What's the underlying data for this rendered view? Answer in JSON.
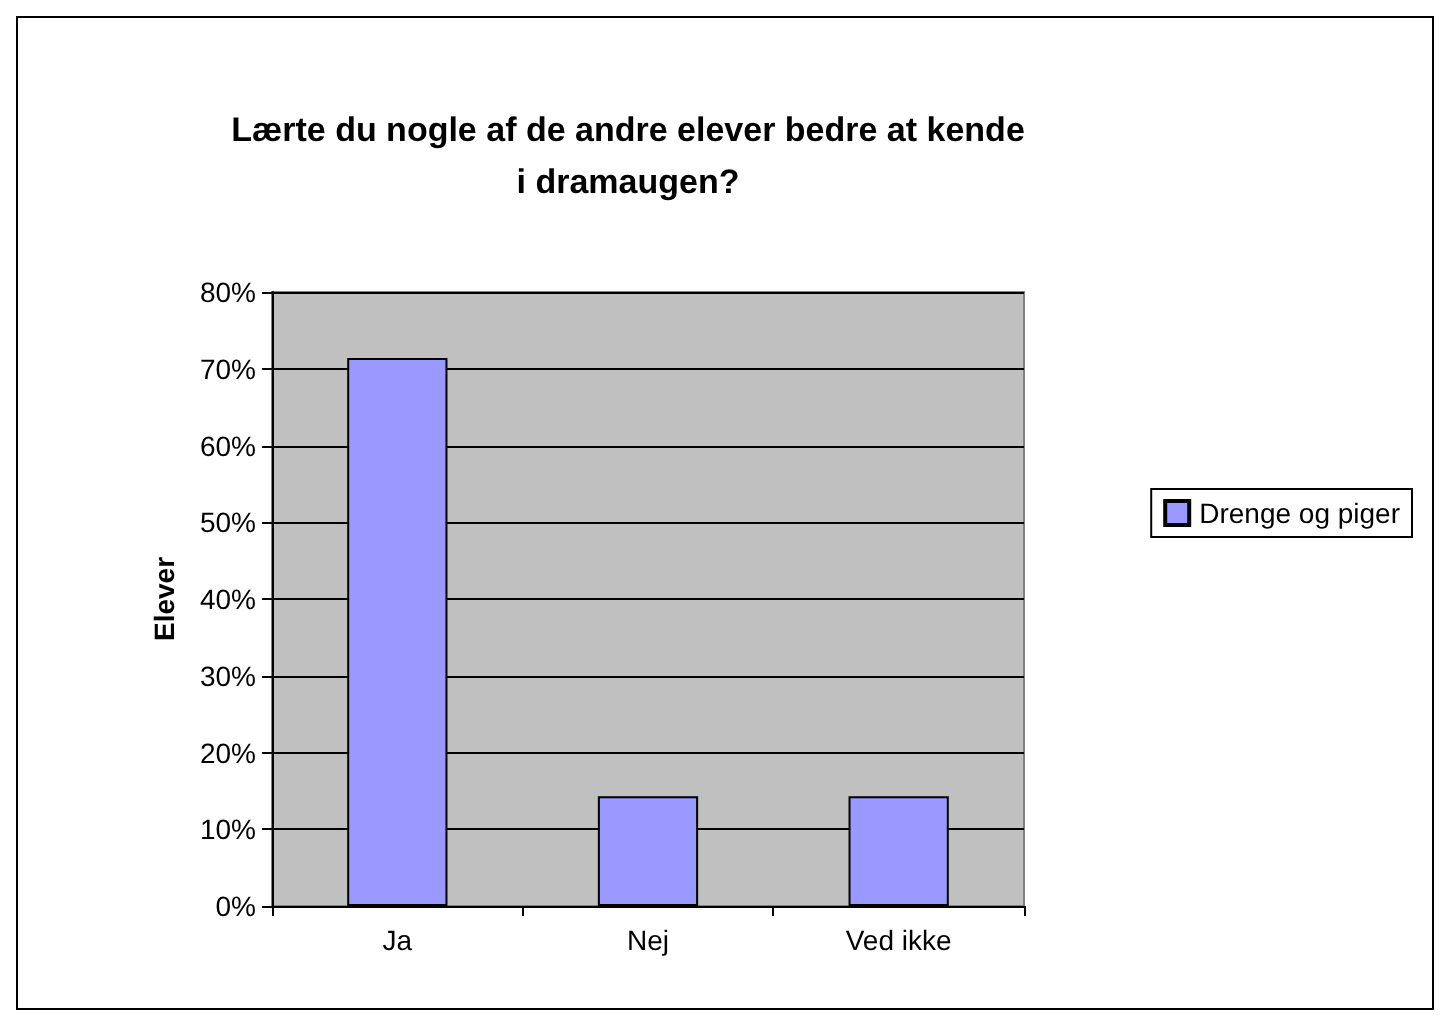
{
  "chart_data": {
    "type": "bar",
    "title": "Lærte du nogle af de andre elever bedre at kende\ni dramaugen?",
    "ylabel": "Elever",
    "categories": [
      "Ja",
      "Nej",
      "Ved ikke"
    ],
    "series": [
      {
        "name": "Drenge og piger",
        "color": "#9999ff",
        "values": [
          71.4,
          14.3,
          14.3
        ]
      }
    ],
    "ylim": [
      0,
      80
    ],
    "yticks": [
      {
        "value": 0,
        "label": "0%"
      },
      {
        "value": 10,
        "label": "10%"
      },
      {
        "value": 20,
        "label": "20%"
      },
      {
        "value": 30,
        "label": "30%"
      },
      {
        "value": 40,
        "label": "40%"
      },
      {
        "value": 50,
        "label": "50%"
      },
      {
        "value": 60,
        "label": "60%"
      },
      {
        "value": 70,
        "label": "70%"
      },
      {
        "value": 80,
        "label": "80%"
      }
    ],
    "grid": "y",
    "legend": "right"
  }
}
